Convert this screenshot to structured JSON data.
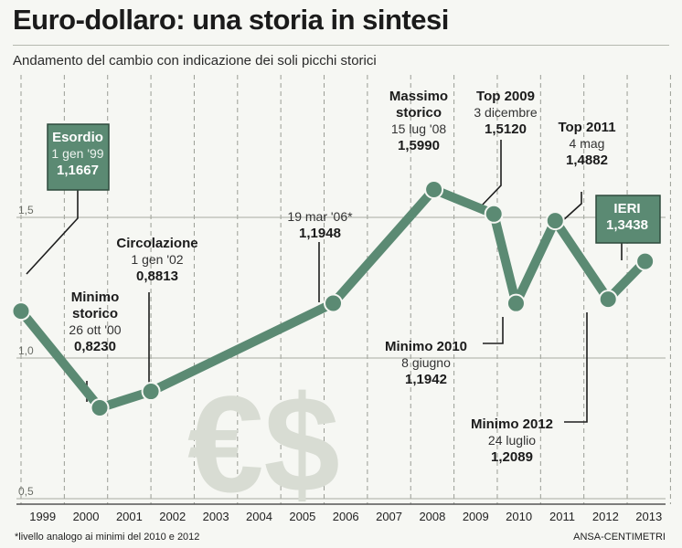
{
  "title": "Euro-dollaro: una storia in sintesi",
  "subtitle": "Andamento del cambio con indicazione dei soli picchi storici",
  "footnote": "*livello analogo ai minimi del 2010 e 2012",
  "source": "ANSA-CENTIMETRI",
  "colors": {
    "line": "#5b8a73",
    "label_box": "#5b8a73",
    "background": "#f6f7f3",
    "symbol": "#d8dcd3"
  },
  "chart_data": {
    "type": "line",
    "xlabel": "",
    "ylabel": "",
    "ylim": [
      0.5,
      1.75
    ],
    "y_ticks": [
      {
        "value": 0.5,
        "label": "0,5"
      },
      {
        "value": 1.0,
        "label": "1,0"
      },
      {
        "value": 1.5,
        "label": "1,5"
      }
    ],
    "x_ticks": [
      "1999",
      "2000",
      "2001",
      "2002",
      "2003",
      "2004",
      "2005",
      "2006",
      "2007",
      "2008",
      "2009",
      "2010",
      "2011",
      "2012",
      "2013"
    ],
    "grid": true,
    "series": [
      {
        "values": [
          {
            "x": "1999-01-01",
            "y": 1.1667
          },
          {
            "x": "2000-10-26",
            "y": 0.823
          },
          {
            "x": "2002-01-01",
            "y": 0.8813
          },
          {
            "x": "2006-03-19",
            "y": 1.1948
          },
          {
            "x": "2008-07-15",
            "y": 1.599
          },
          {
            "x": "2009-12-03",
            "y": 1.512
          },
          {
            "x": "2010-06-08",
            "y": 1.1942
          },
          {
            "x": "2011-05-04",
            "y": 1.4882
          },
          {
            "x": "2012-07-24",
            "y": 1.2089
          },
          {
            "x": "2013-06-01",
            "y": 1.3438
          }
        ]
      }
    ],
    "annotations": [
      {
        "lines": [
          "Esordio"
        ],
        "date": "1 gen '99",
        "value": "1,1667",
        "boxed": true
      },
      {
        "lines": [
          "Minimo",
          "storico"
        ],
        "date": "26 ott '00",
        "value": "0,8230",
        "boxed": false
      },
      {
        "lines": [
          "Circolazione"
        ],
        "date": "1 gen '02",
        "value": "0,8813",
        "boxed": false
      },
      {
        "lines": [],
        "date": "19 mar '06*",
        "value": "1,1948",
        "boxed": false
      },
      {
        "lines": [
          "Massimo",
          "storico"
        ],
        "date": "15 lug '08",
        "value": "1,5990",
        "boxed": false
      },
      {
        "lines": [
          "Top 2009"
        ],
        "date": "3 dicembre",
        "value": "1,5120",
        "boxed": false
      },
      {
        "lines": [
          "Minimo 2010"
        ],
        "date": "8 giugno",
        "value": "1,1942",
        "boxed": false
      },
      {
        "lines": [
          "Top 2011"
        ],
        "date": "4 mag",
        "value": "1,4882",
        "boxed": false
      },
      {
        "lines": [
          "Minimo 2012"
        ],
        "date": "24 luglio",
        "value": "1,2089",
        "boxed": false
      },
      {
        "lines": [
          "IERI"
        ],
        "date": "",
        "value": "1,3438",
        "boxed": true
      }
    ],
    "watermark": "€$"
  }
}
